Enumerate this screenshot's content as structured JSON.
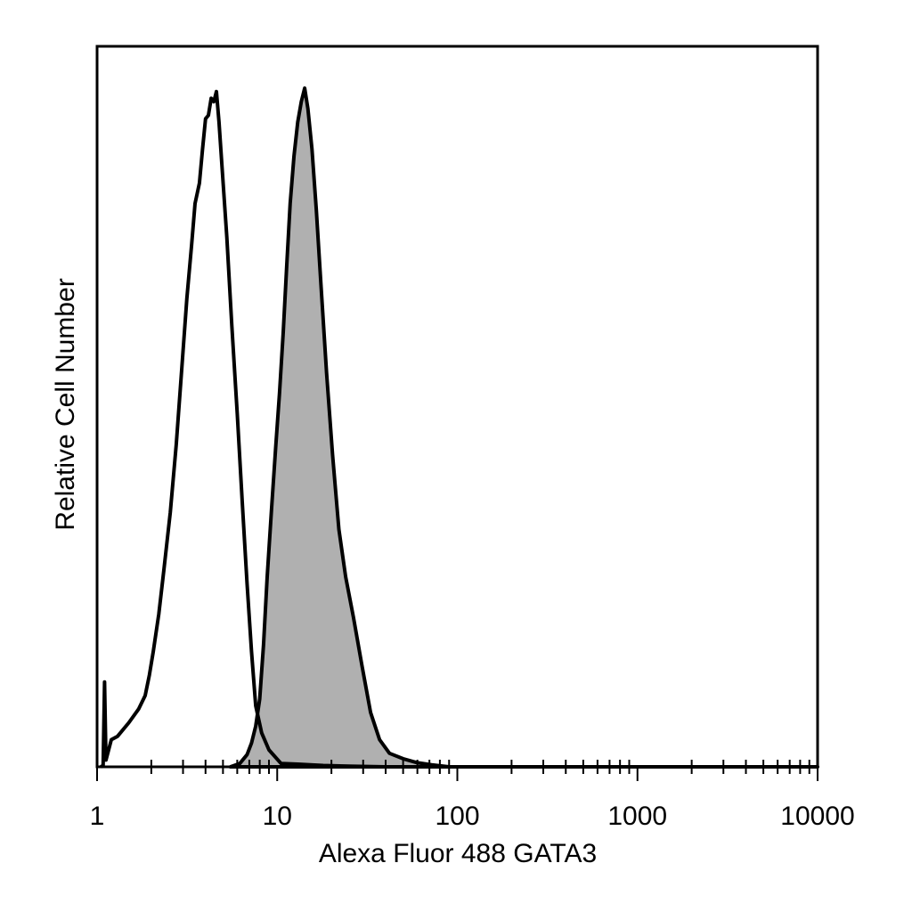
{
  "chart_data": {
    "type": "area",
    "title": "",
    "xlabel": "Alexa Fluor 488 GATA3",
    "ylabel": "Relative Cell Number",
    "x_scale": "log",
    "xlim": [
      1,
      10000
    ],
    "ylim": [
      0,
      100
    ],
    "x_ticks": [
      1,
      10,
      100,
      1000,
      10000
    ],
    "x_tick_labels": [
      "1",
      "10",
      "100",
      "1000",
      "10000"
    ],
    "y_ticks": [],
    "grid": false,
    "legend": "none",
    "series": [
      {
        "style": "outline",
        "color": "#000000",
        "points": [
          [
            1.05,
            0
          ],
          [
            1.08,
            0.2
          ],
          [
            1.1,
            12.5
          ],
          [
            1.12,
            1
          ],
          [
            1.2,
            4
          ],
          [
            1.3,
            4.5
          ],
          [
            1.5,
            6.5
          ],
          [
            1.7,
            8.5
          ],
          [
            1.85,
            10.5
          ],
          [
            1.95,
            13.5
          ],
          [
            2.05,
            17
          ],
          [
            2.2,
            22.5
          ],
          [
            2.35,
            29
          ],
          [
            2.55,
            37.5
          ],
          [
            2.75,
            47.5
          ],
          [
            2.95,
            58.5
          ],
          [
            3.15,
            69
          ],
          [
            3.35,
            77
          ],
          [
            3.5,
            83
          ],
          [
            3.7,
            86
          ],
          [
            3.85,
            91
          ],
          [
            4.0,
            95.5
          ],
          [
            4.15,
            96
          ],
          [
            4.3,
            98.5
          ],
          [
            4.45,
            98
          ],
          [
            4.6,
            99.5
          ],
          [
            4.75,
            95
          ],
          [
            4.95,
            88
          ],
          [
            5.25,
            78
          ],
          [
            5.6,
            65
          ],
          [
            6.0,
            52
          ],
          [
            6.4,
            39
          ],
          [
            6.8,
            27
          ],
          [
            7.2,
            17
          ],
          [
            7.6,
            9
          ],
          [
            8.2,
            5
          ],
          [
            9.0,
            2.5
          ],
          [
            10.5,
            0.5
          ],
          [
            13,
            0.4
          ],
          [
            18,
            0.2
          ],
          [
            25,
            0.1
          ],
          [
            40,
            0
          ],
          [
            10000,
            0
          ]
        ]
      },
      {
        "style": "filled",
        "fill": "#b0b0b0",
        "color": "#000000",
        "points": [
          [
            5.5,
            0
          ],
          [
            6.2,
            0.5
          ],
          [
            6.8,
            1.8
          ],
          [
            7.2,
            3.5
          ],
          [
            7.6,
            6
          ],
          [
            8.0,
            10
          ],
          [
            8.4,
            18
          ],
          [
            8.8,
            28
          ],
          [
            9.3,
            38
          ],
          [
            9.8,
            47
          ],
          [
            10.3,
            55
          ],
          [
            10.8,
            64
          ],
          [
            11.3,
            74
          ],
          [
            11.8,
            83
          ],
          [
            12.4,
            90
          ],
          [
            13.0,
            95
          ],
          [
            13.6,
            98
          ],
          [
            14.2,
            100
          ],
          [
            14.8,
            97
          ],
          [
            15.6,
            91
          ],
          [
            16.5,
            82
          ],
          [
            17.5,
            71
          ],
          [
            18.8,
            58
          ],
          [
            20.3,
            46
          ],
          [
            22.0,
            35
          ],
          [
            24.0,
            28
          ],
          [
            26.5,
            22
          ],
          [
            29.5,
            15
          ],
          [
            33,
            8
          ],
          [
            37,
            4
          ],
          [
            42,
            2
          ],
          [
            50,
            1.2
          ],
          [
            60,
            0.6
          ],
          [
            72,
            0.3
          ],
          [
            90,
            0
          ],
          [
            10000,
            0
          ]
        ]
      }
    ]
  }
}
